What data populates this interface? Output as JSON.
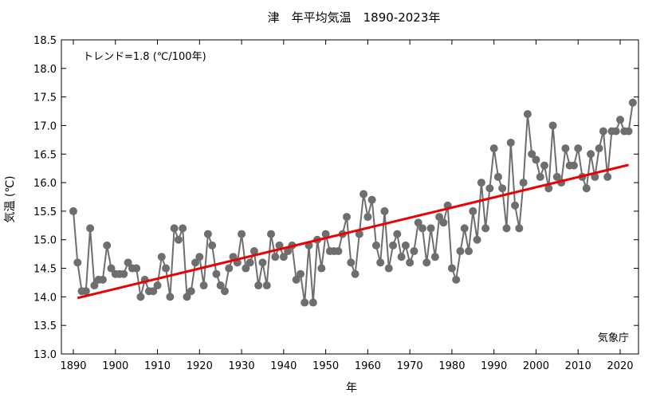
{
  "chart_data": {
    "type": "line",
    "title": "津　年平均気温　1890-2023年",
    "xlabel": "年",
    "ylabel": "気温 (℃)",
    "xlim": [
      1888,
      2025
    ],
    "ylim": [
      13.0,
      18.5
    ],
    "xticks": [
      1890,
      1900,
      1910,
      1920,
      1930,
      1940,
      1950,
      1960,
      1970,
      1980,
      1990,
      2000,
      2010,
      2020
    ],
    "yticks": [
      13.0,
      13.5,
      14.0,
      14.5,
      15.0,
      15.5,
      16.0,
      16.5,
      17.0,
      17.5,
      18.0,
      18.5
    ],
    "grid": false,
    "annotation": "トレンド=1.8 (℃/100年)",
    "source": "気象庁",
    "series": [
      {
        "color": "#6e6e6e",
        "x": [
          1890,
          1891,
          1892,
          1893,
          1894,
          1895,
          1896,
          1897,
          1898,
          1899,
          1900,
          1901,
          1902,
          1903,
          1904,
          1905,
          1906,
          1907,
          1908,
          1909,
          1910,
          1911,
          1912,
          1913,
          1914,
          1915,
          1916,
          1917,
          1918,
          1919,
          1920,
          1921,
          1922,
          1923,
          1924,
          1925,
          1926,
          1927,
          1928,
          1929,
          1930,
          1931,
          1932,
          1933,
          1934,
          1935,
          1936,
          1937,
          1938,
          1939,
          1940,
          1941,
          1942,
          1943,
          1944,
          1945,
          1946,
          1947,
          1948,
          1949,
          1950,
          1951,
          1952,
          1953,
          1954,
          1955,
          1956,
          1957,
          1958,
          1959,
          1960,
          1961,
          1962,
          1963,
          1964,
          1965,
          1966,
          1967,
          1968,
          1969,
          1970,
          1971,
          1972,
          1973,
          1974,
          1975,
          1976,
          1977,
          1978,
          1979,
          1980,
          1981,
          1982,
          1983,
          1984,
          1985,
          1986,
          1987,
          1988,
          1989,
          1990,
          1991,
          1992,
          1993,
          1994,
          1995,
          1996,
          1997,
          1998,
          1999,
          2000,
          2001,
          2002,
          2003,
          2004,
          2005,
          2006,
          2007,
          2008,
          2009,
          2010,
          2011,
          2012,
          2013,
          2014,
          2015,
          2016,
          2017,
          2018,
          2019,
          2020,
          2021,
          2022,
          2023
        ],
        "y": [
          15.5,
          14.6,
          14.1,
          14.1,
          15.2,
          14.2,
          14.3,
          14.3,
          14.9,
          14.5,
          14.4,
          14.4,
          14.4,
          14.6,
          14.5,
          14.5,
          14.0,
          14.3,
          14.1,
          14.1,
          14.2,
          14.7,
          14.5,
          14.0,
          15.2,
          15.0,
          15.2,
          14.0,
          14.1,
          14.6,
          14.7,
          14.2,
          15.1,
          14.9,
          14.4,
          14.2,
          14.1,
          14.5,
          14.7,
          14.6,
          15.1,
          14.5,
          14.6,
          14.8,
          14.2,
          14.6,
          14.2,
          15.1,
          14.7,
          14.9,
          14.7,
          14.8,
          14.9,
          14.3,
          14.4,
          13.9,
          14.9,
          13.9,
          15.0,
          14.5,
          15.1,
          14.8,
          14.8,
          14.8,
          15.1,
          15.4,
          14.6,
          14.4,
          15.1,
          15.8,
          15.4,
          15.7,
          14.9,
          14.6,
          15.5,
          14.5,
          14.9,
          15.1,
          14.7,
          14.9,
          14.6,
          14.8,
          15.3,
          15.2,
          14.6,
          15.2,
          14.7,
          15.4,
          15.3,
          15.6,
          14.5,
          14.3,
          14.8,
          15.2,
          14.8,
          15.5,
          15.0,
          16.0,
          15.2,
          15.9,
          16.6,
          16.1,
          15.9,
          15.2,
          16.7,
          15.6,
          15.2,
          16.0,
          17.2,
          16.5,
          16.4,
          16.1,
          16.3,
          15.9,
          17.0,
          16.1,
          16.0,
          16.6,
          16.3,
          16.3,
          16.6,
          16.1,
          15.9,
          16.5,
          16.1,
          16.6,
          16.9,
          16.1,
          16.9,
          16.9,
          17.1,
          16.9,
          16.9,
          17.4
        ]
      }
    ],
    "trend": {
      "color": "#ee0000",
      "x": [
        1891,
        2022
      ],
      "y": [
        13.98,
        16.31
      ]
    }
  }
}
